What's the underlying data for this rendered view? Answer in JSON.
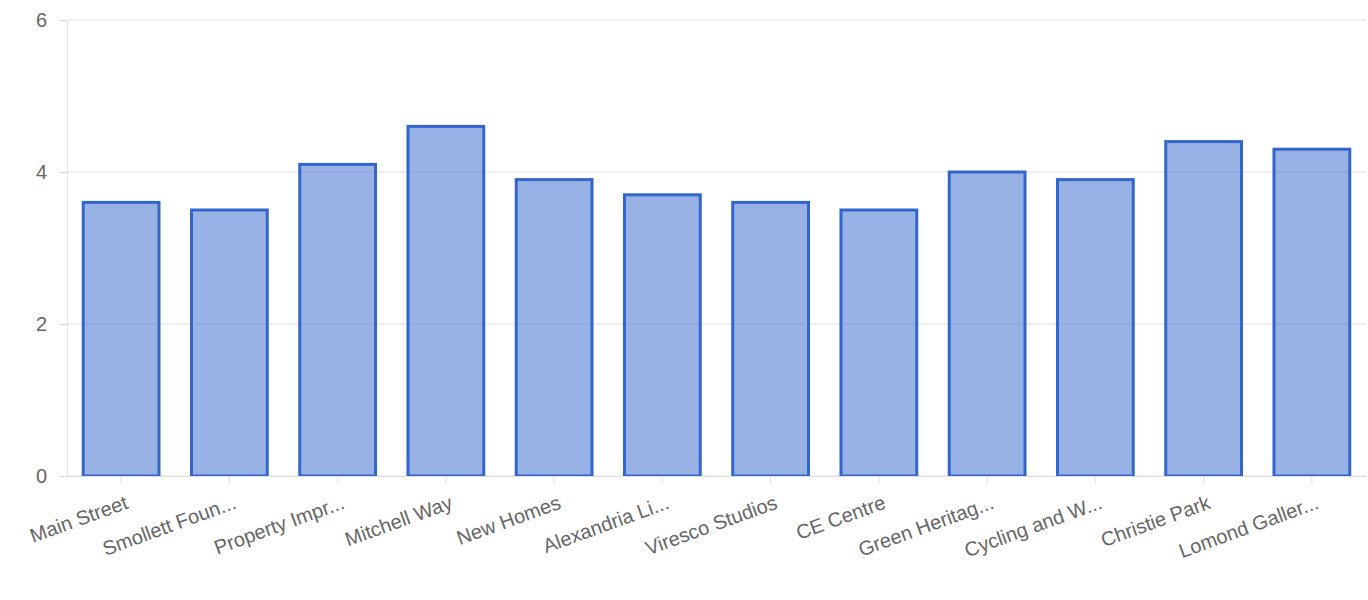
{
  "chart_data": {
    "type": "bar",
    "categories": [
      "Main Street",
      "Smollett Foun...",
      "Property Impr...",
      "Mitchell Way",
      "New Homes",
      "Alexandria Li...",
      "Viresco Studios",
      "CE Centre",
      "Green Heritag...",
      "Cycling and W...",
      "Christie Park",
      "Lomond Galler..."
    ],
    "values": [
      3.6,
      3.5,
      4.1,
      4.6,
      3.9,
      3.7,
      3.6,
      3.5,
      4.0,
      3.9,
      4.4,
      4.3
    ],
    "color": "#3366cc",
    "ylim": [
      0,
      6
    ],
    "yticks": [
      0,
      2,
      4,
      6
    ],
    "grid": true
  }
}
